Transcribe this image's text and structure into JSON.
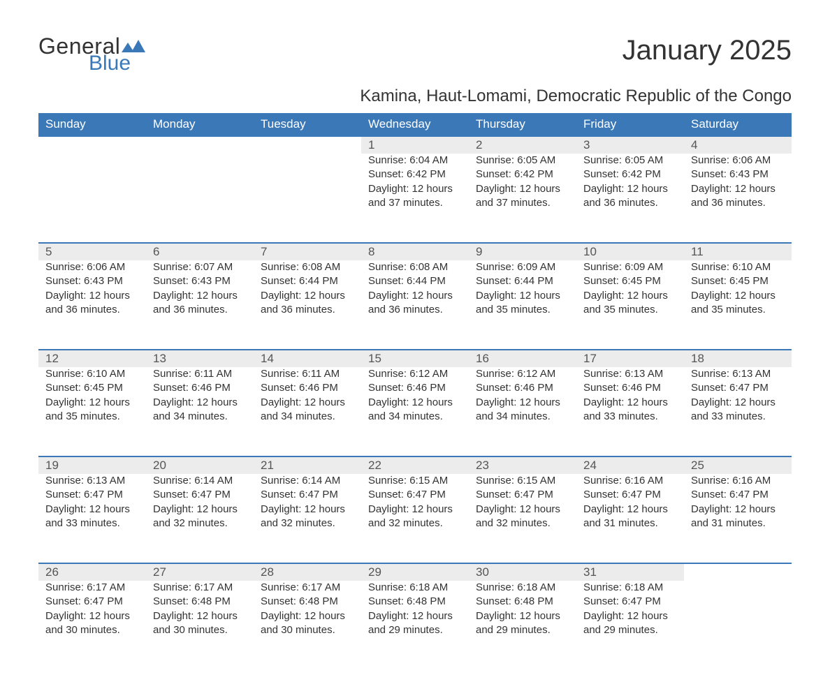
{
  "brand": {
    "name_part1": "General",
    "name_part2": "Blue",
    "accent_color": "#3b78b8"
  },
  "title": "January 2025",
  "subtitle": "Kamina, Haut-Lomami, Democratic Republic of the Congo",
  "colors": {
    "header_bg": "#3b78b8",
    "header_text": "#ffffff",
    "daynum_bg": "#ececec",
    "row_border": "#3b78b8",
    "body_text": "#333333",
    "page_bg": "#ffffff"
  },
  "fonts": {
    "body_size_pt": 11,
    "title_size_pt": 30,
    "subtitle_size_pt": 18,
    "header_size_pt": 13
  },
  "weekdays": [
    "Sunday",
    "Monday",
    "Tuesday",
    "Wednesday",
    "Thursday",
    "Friday",
    "Saturday"
  ],
  "weeks": [
    [
      null,
      null,
      null,
      {
        "day": "1",
        "sunrise": "Sunrise: 6:04 AM",
        "sunset": "Sunset: 6:42 PM",
        "daylight1": "Daylight: 12 hours",
        "daylight2": "and 37 minutes."
      },
      {
        "day": "2",
        "sunrise": "Sunrise: 6:05 AM",
        "sunset": "Sunset: 6:42 PM",
        "daylight1": "Daylight: 12 hours",
        "daylight2": "and 37 minutes."
      },
      {
        "day": "3",
        "sunrise": "Sunrise: 6:05 AM",
        "sunset": "Sunset: 6:42 PM",
        "daylight1": "Daylight: 12 hours",
        "daylight2": "and 36 minutes."
      },
      {
        "day": "4",
        "sunrise": "Sunrise: 6:06 AM",
        "sunset": "Sunset: 6:43 PM",
        "daylight1": "Daylight: 12 hours",
        "daylight2": "and 36 minutes."
      }
    ],
    [
      {
        "day": "5",
        "sunrise": "Sunrise: 6:06 AM",
        "sunset": "Sunset: 6:43 PM",
        "daylight1": "Daylight: 12 hours",
        "daylight2": "and 36 minutes."
      },
      {
        "day": "6",
        "sunrise": "Sunrise: 6:07 AM",
        "sunset": "Sunset: 6:43 PM",
        "daylight1": "Daylight: 12 hours",
        "daylight2": "and 36 minutes."
      },
      {
        "day": "7",
        "sunrise": "Sunrise: 6:08 AM",
        "sunset": "Sunset: 6:44 PM",
        "daylight1": "Daylight: 12 hours",
        "daylight2": "and 36 minutes."
      },
      {
        "day": "8",
        "sunrise": "Sunrise: 6:08 AM",
        "sunset": "Sunset: 6:44 PM",
        "daylight1": "Daylight: 12 hours",
        "daylight2": "and 36 minutes."
      },
      {
        "day": "9",
        "sunrise": "Sunrise: 6:09 AM",
        "sunset": "Sunset: 6:44 PM",
        "daylight1": "Daylight: 12 hours",
        "daylight2": "and 35 minutes."
      },
      {
        "day": "10",
        "sunrise": "Sunrise: 6:09 AM",
        "sunset": "Sunset: 6:45 PM",
        "daylight1": "Daylight: 12 hours",
        "daylight2": "and 35 minutes."
      },
      {
        "day": "11",
        "sunrise": "Sunrise: 6:10 AM",
        "sunset": "Sunset: 6:45 PM",
        "daylight1": "Daylight: 12 hours",
        "daylight2": "and 35 minutes."
      }
    ],
    [
      {
        "day": "12",
        "sunrise": "Sunrise: 6:10 AM",
        "sunset": "Sunset: 6:45 PM",
        "daylight1": "Daylight: 12 hours",
        "daylight2": "and 35 minutes."
      },
      {
        "day": "13",
        "sunrise": "Sunrise: 6:11 AM",
        "sunset": "Sunset: 6:46 PM",
        "daylight1": "Daylight: 12 hours",
        "daylight2": "and 34 minutes."
      },
      {
        "day": "14",
        "sunrise": "Sunrise: 6:11 AM",
        "sunset": "Sunset: 6:46 PM",
        "daylight1": "Daylight: 12 hours",
        "daylight2": "and 34 minutes."
      },
      {
        "day": "15",
        "sunrise": "Sunrise: 6:12 AM",
        "sunset": "Sunset: 6:46 PM",
        "daylight1": "Daylight: 12 hours",
        "daylight2": "and 34 minutes."
      },
      {
        "day": "16",
        "sunrise": "Sunrise: 6:12 AM",
        "sunset": "Sunset: 6:46 PM",
        "daylight1": "Daylight: 12 hours",
        "daylight2": "and 34 minutes."
      },
      {
        "day": "17",
        "sunrise": "Sunrise: 6:13 AM",
        "sunset": "Sunset: 6:46 PM",
        "daylight1": "Daylight: 12 hours",
        "daylight2": "and 33 minutes."
      },
      {
        "day": "18",
        "sunrise": "Sunrise: 6:13 AM",
        "sunset": "Sunset: 6:47 PM",
        "daylight1": "Daylight: 12 hours",
        "daylight2": "and 33 minutes."
      }
    ],
    [
      {
        "day": "19",
        "sunrise": "Sunrise: 6:13 AM",
        "sunset": "Sunset: 6:47 PM",
        "daylight1": "Daylight: 12 hours",
        "daylight2": "and 33 minutes."
      },
      {
        "day": "20",
        "sunrise": "Sunrise: 6:14 AM",
        "sunset": "Sunset: 6:47 PM",
        "daylight1": "Daylight: 12 hours",
        "daylight2": "and 32 minutes."
      },
      {
        "day": "21",
        "sunrise": "Sunrise: 6:14 AM",
        "sunset": "Sunset: 6:47 PM",
        "daylight1": "Daylight: 12 hours",
        "daylight2": "and 32 minutes."
      },
      {
        "day": "22",
        "sunrise": "Sunrise: 6:15 AM",
        "sunset": "Sunset: 6:47 PM",
        "daylight1": "Daylight: 12 hours",
        "daylight2": "and 32 minutes."
      },
      {
        "day": "23",
        "sunrise": "Sunrise: 6:15 AM",
        "sunset": "Sunset: 6:47 PM",
        "daylight1": "Daylight: 12 hours",
        "daylight2": "and 32 minutes."
      },
      {
        "day": "24",
        "sunrise": "Sunrise: 6:16 AM",
        "sunset": "Sunset: 6:47 PM",
        "daylight1": "Daylight: 12 hours",
        "daylight2": "and 31 minutes."
      },
      {
        "day": "25",
        "sunrise": "Sunrise: 6:16 AM",
        "sunset": "Sunset: 6:47 PM",
        "daylight1": "Daylight: 12 hours",
        "daylight2": "and 31 minutes."
      }
    ],
    [
      {
        "day": "26",
        "sunrise": "Sunrise: 6:17 AM",
        "sunset": "Sunset: 6:47 PM",
        "daylight1": "Daylight: 12 hours",
        "daylight2": "and 30 minutes."
      },
      {
        "day": "27",
        "sunrise": "Sunrise: 6:17 AM",
        "sunset": "Sunset: 6:48 PM",
        "daylight1": "Daylight: 12 hours",
        "daylight2": "and 30 minutes."
      },
      {
        "day": "28",
        "sunrise": "Sunrise: 6:17 AM",
        "sunset": "Sunset: 6:48 PM",
        "daylight1": "Daylight: 12 hours",
        "daylight2": "and 30 minutes."
      },
      {
        "day": "29",
        "sunrise": "Sunrise: 6:18 AM",
        "sunset": "Sunset: 6:48 PM",
        "daylight1": "Daylight: 12 hours",
        "daylight2": "and 29 minutes."
      },
      {
        "day": "30",
        "sunrise": "Sunrise: 6:18 AM",
        "sunset": "Sunset: 6:48 PM",
        "daylight1": "Daylight: 12 hours",
        "daylight2": "and 29 minutes."
      },
      {
        "day": "31",
        "sunrise": "Sunrise: 6:18 AM",
        "sunset": "Sunset: 6:47 PM",
        "daylight1": "Daylight: 12 hours",
        "daylight2": "and 29 minutes."
      },
      null
    ]
  ]
}
